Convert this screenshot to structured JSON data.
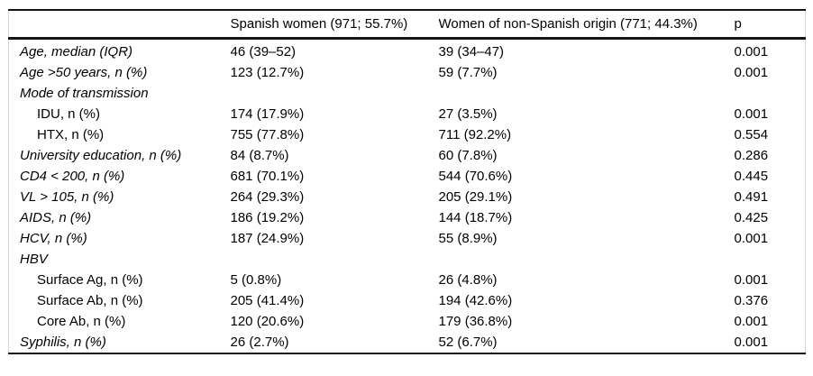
{
  "table": {
    "header": {
      "col_label": "",
      "col_spanish": "Spanish women (971; 55.7%)",
      "col_non_spanish": "Women of non-Spanish origin (771; 44.3%)",
      "col_p": "p"
    },
    "rows": [
      {
        "label": "Age, median (IQR)",
        "italic": true,
        "indent": false,
        "spanish": "46 (39–52)",
        "non_spanish": "39 (34–47)",
        "p": "0.001"
      },
      {
        "label": "Age >50 years, n (%)",
        "italic": true,
        "indent": false,
        "spanish": "123 (12.7%)",
        "non_spanish": "59 (7.7%)",
        "p": "0.001"
      },
      {
        "label": "Mode of transmission",
        "italic": true,
        "indent": false,
        "spanish": "",
        "non_spanish": "",
        "p": ""
      },
      {
        "label": "IDU, n (%)",
        "italic": false,
        "indent": true,
        "spanish": "174 (17.9%)",
        "non_spanish": "27 (3.5%)",
        "p": "0.001"
      },
      {
        "label": "HTX, n (%)",
        "italic": false,
        "indent": true,
        "spanish": "755 (77.8%)",
        "non_spanish": "711 (92.2%)",
        "p": "0.554"
      },
      {
        "label": "University education, n (%)",
        "italic": true,
        "indent": false,
        "spanish": "84 (8.7%)",
        "non_spanish": "60 (7.8%)",
        "p": "0.286"
      },
      {
        "label": "CD4 < 200, n (%)",
        "italic": true,
        "indent": false,
        "spanish": "681 (70.1%)",
        "non_spanish": "544 (70.6%)",
        "p": "0.445"
      },
      {
        "label": "VL > 105, n (%)",
        "italic": true,
        "indent": false,
        "spanish": "264 (29.3%)",
        "non_spanish": "205 (29.1%)",
        "p": "0.491"
      },
      {
        "label": "AIDS, n (%)",
        "italic": true,
        "indent": false,
        "spanish": "186 (19.2%)",
        "non_spanish": "144 (18.7%)",
        "p": "0.425"
      },
      {
        "label": "HCV, n (%)",
        "italic": true,
        "indent": false,
        "spanish": "187 (24.9%)",
        "non_spanish": "55 (8.9%)",
        "p": "0.001"
      },
      {
        "label": "HBV",
        "italic": true,
        "indent": false,
        "spanish": "",
        "non_spanish": "",
        "p": ""
      },
      {
        "label": "Surface Ag, n (%)",
        "italic": false,
        "indent": true,
        "spanish": "5 (0.8%)",
        "non_spanish": "26 (4.8%)",
        "p": "0.001"
      },
      {
        "label": "Surface Ab, n (%)",
        "italic": false,
        "indent": true,
        "spanish": "205 (41.4%)",
        "non_spanish": "194 (42.6%)",
        "p": "0.376"
      },
      {
        "label": "Core Ab, n (%)",
        "italic": false,
        "indent": true,
        "spanish": "120 (20.6%)",
        "non_spanish": "179 (36.8%)",
        "p": "0.001"
      },
      {
        "label": "Syphilis, n (%)",
        "italic": true,
        "indent": false,
        "spanish": "26 (2.7%)",
        "non_spanish": "52 (6.7%)",
        "p": "0.001"
      }
    ],
    "colors": {
      "rule": "#141414",
      "edge": "#d9d9d9",
      "text": "#000000",
      "background": "#ffffff"
    }
  }
}
